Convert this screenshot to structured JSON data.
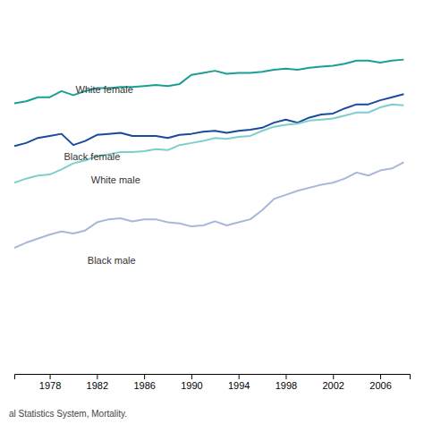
{
  "chart_data": {
    "type": "line",
    "footnote": "al Statistics System, Mortality.",
    "x": [
      1975,
      1976,
      1977,
      1978,
      1979,
      1980,
      1981,
      1982,
      1983,
      1984,
      1985,
      1986,
      1987,
      1988,
      1989,
      1990,
      1991,
      1992,
      1993,
      1994,
      1995,
      1996,
      1997,
      1998,
      1999,
      2000,
      2001,
      2002,
      2003,
      2004,
      2005,
      2006,
      2007,
      2008
    ],
    "series": [
      {
        "name": "White female",
        "color": "#1a9e96",
        "values": [
          76.6,
          76.8,
          77.2,
          77.2,
          77.8,
          77.4,
          77.8,
          78.1,
          78.1,
          78.2,
          78.2,
          78.3,
          78.4,
          78.3,
          78.5,
          79.4,
          79.6,
          79.8,
          79.5,
          79.6,
          79.6,
          79.7,
          79.9,
          80.0,
          79.9,
          80.1,
          80.2,
          80.3,
          80.5,
          80.8,
          80.8,
          80.6,
          80.8,
          80.9
        ]
      },
      {
        "name": "Black female",
        "color": "#1a4a9e",
        "values": [
          72.4,
          72.7,
          73.2,
          73.4,
          73.6,
          72.5,
          72.9,
          73.5,
          73.6,
          73.7,
          73.4,
          73.4,
          73.4,
          73.2,
          73.5,
          73.6,
          73.8,
          73.9,
          73.7,
          73.9,
          74.0,
          74.2,
          74.7,
          75.0,
          74.7,
          75.2,
          75.5,
          75.6,
          76.1,
          76.5,
          76.5,
          76.9,
          77.2,
          77.5
        ]
      },
      {
        "name": "White male",
        "color": "#7ecece",
        "values": [
          68.8,
          69.2,
          69.5,
          69.6,
          70.1,
          70.7,
          71.0,
          71.4,
          71.6,
          71.8,
          71.8,
          71.9,
          72.1,
          72.0,
          72.5,
          72.7,
          72.9,
          73.2,
          73.1,
          73.3,
          73.4,
          73.9,
          74.3,
          74.5,
          74.6,
          74.9,
          75.0,
          75.1,
          75.4,
          75.7,
          75.7,
          76.2,
          76.5,
          76.4
        ]
      },
      {
        "name": "Black male",
        "color": "#a8b8d8",
        "values": [
          62.4,
          62.9,
          63.3,
          63.7,
          64.0,
          63.8,
          64.1,
          64.9,
          65.2,
          65.3,
          65.0,
          65.2,
          65.2,
          64.9,
          64.8,
          64.5,
          64.6,
          65.0,
          64.6,
          64.9,
          65.2,
          66.1,
          67.2,
          67.6,
          68.0,
          68.3,
          68.6,
          68.8,
          69.2,
          69.8,
          69.5,
          70.0,
          70.2,
          70.8
        ]
      }
    ],
    "annotations": [
      {
        "text": "White female",
        "x": 1980.2,
        "y": 77.6
      },
      {
        "text": "Black female",
        "x": 1979.2,
        "y": 71.0
      },
      {
        "text": "White male",
        "x": 1981.5,
        "y": 68.7
      },
      {
        "text": "Black male",
        "x": 1981.2,
        "y": 60.8
      }
    ],
    "xlim": [
      1975,
      2008.5
    ],
    "xticks": [
      1978,
      1982,
      1986,
      1990,
      1994,
      1998,
      2002,
      2006
    ],
    "ylim": [
      50,
      85
    ],
    "tick_labels": "x",
    "grid": false
  }
}
